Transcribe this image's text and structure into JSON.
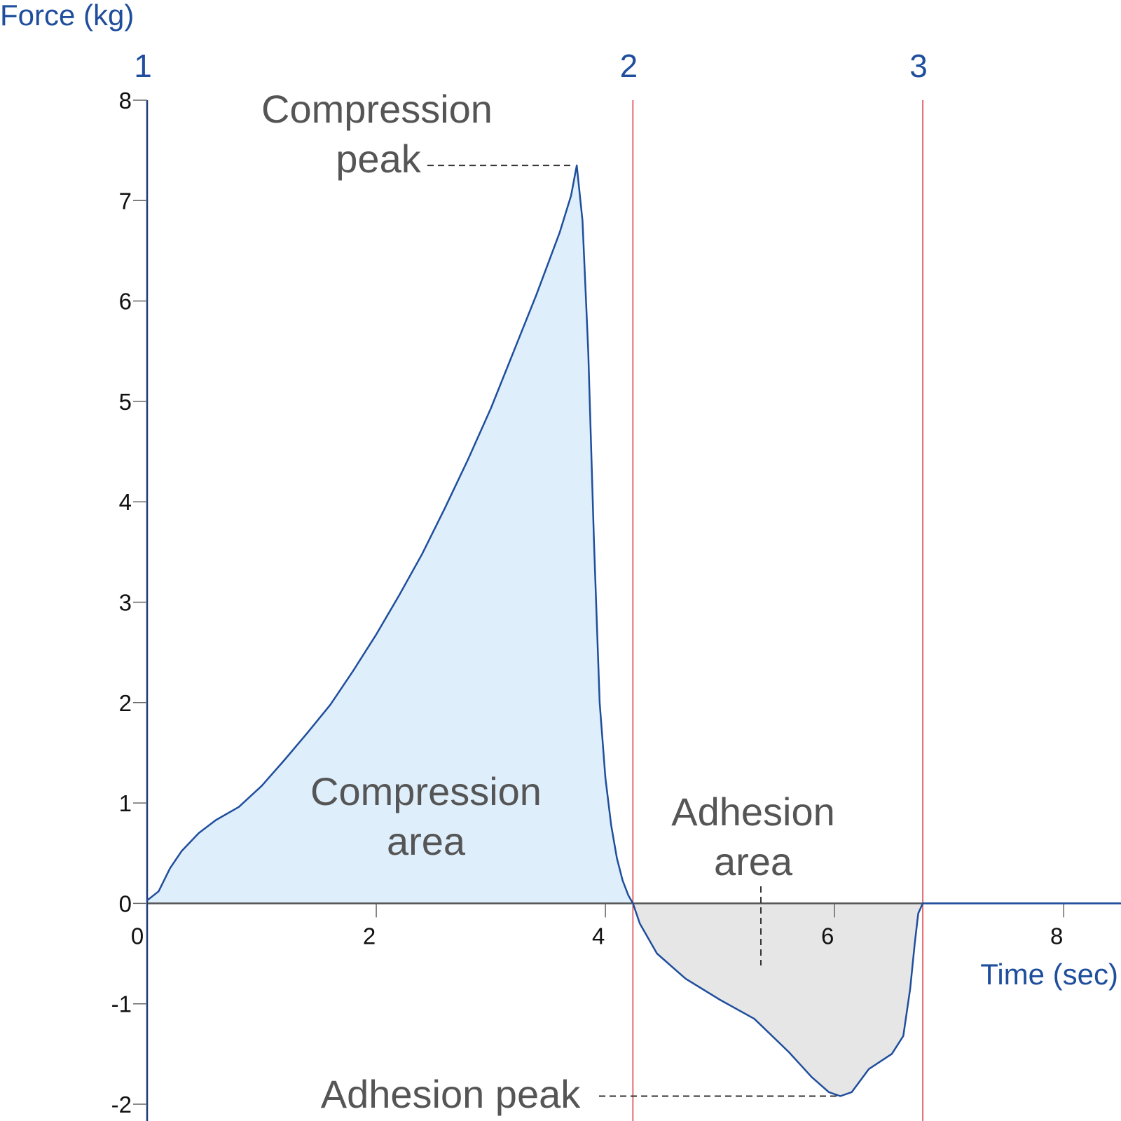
{
  "chart_data": {
    "type": "area",
    "ylabel": "Force (kg)",
    "xlabel": "Time (sec)",
    "xlim": [
      0,
      8.5
    ],
    "ylim": [
      -2,
      8
    ],
    "x_ticks": [
      0,
      2,
      4,
      6,
      8
    ],
    "y_ticks": [
      8,
      7,
      6,
      5,
      4,
      3,
      2,
      1,
      0,
      -1,
      -2
    ],
    "markers": [
      {
        "label": "1",
        "x": 0
      },
      {
        "label": "2",
        "x": 4.24
      },
      {
        "label": "3",
        "x": 6.77
      }
    ],
    "series": [
      {
        "x": [
          0,
          0.1,
          0.2,
          0.3,
          0.45,
          0.6,
          0.8,
          1.0,
          1.2,
          1.4,
          1.6,
          1.8,
          2.0,
          2.2,
          2.4,
          2.6,
          2.8,
          3.0,
          3.2,
          3.4,
          3.6,
          3.7,
          3.75,
          3.8,
          3.85,
          3.9,
          3.95,
          4.0,
          4.05,
          4.1,
          4.15,
          4.2,
          4.24,
          4.3,
          4.45,
          4.7,
          5.0,
          5.3,
          5.6,
          5.8,
          5.95,
          6.05,
          6.15,
          6.3,
          6.5,
          6.6,
          6.66,
          6.7,
          6.73,
          6.77,
          7.0,
          8.0,
          8.5
        ],
        "y": [
          0.03,
          0.12,
          0.35,
          0.52,
          0.7,
          0.83,
          0.96,
          1.17,
          1.43,
          1.7,
          1.98,
          2.32,
          2.68,
          3.07,
          3.48,
          3.94,
          4.42,
          4.93,
          5.5,
          6.07,
          6.68,
          7.05,
          7.35,
          6.8,
          5.5,
          3.6,
          2.0,
          1.25,
          0.78,
          0.45,
          0.23,
          0.08,
          0.0,
          -0.2,
          -0.5,
          -0.75,
          -0.96,
          -1.15,
          -1.48,
          -1.73,
          -1.88,
          -1.92,
          -1.88,
          -1.65,
          -1.5,
          -1.32,
          -0.85,
          -0.4,
          -0.1,
          0.0,
          0.0,
          0.0,
          0.0
        ]
      }
    ],
    "annotations": [
      {
        "lines": [
          "Compression",
          "peak"
        ],
        "x": 3.75,
        "y": 7.35
      },
      {
        "lines": [
          "Compression",
          "area"
        ]
      },
      {
        "lines": [
          "Adhesion",
          "area"
        ]
      },
      {
        "lines": [
          "Adhesion peak"
        ],
        "x": 6.05,
        "y": -1.92
      }
    ],
    "colors": {
      "line": "#1f4e9c",
      "compression_fill": "#deeefb",
      "adhesion_fill": "#e6e6e6",
      "marker_line": "#d9363e",
      "axis": "#1f3a7a",
      "zero_line": "#555555"
    }
  }
}
